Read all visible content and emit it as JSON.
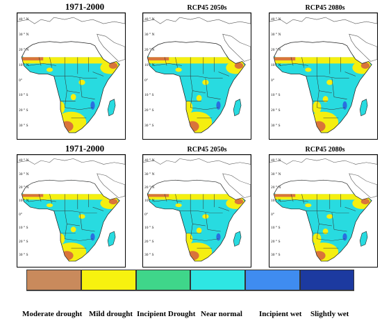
{
  "panels": [
    {
      "title": "1971-2000",
      "size": "big"
    },
    {
      "title": "RCP45 2050s",
      "size": "small"
    },
    {
      "title": "RCP45 2080s",
      "size": "small"
    },
    {
      "title": "1971-2000",
      "size": "big"
    },
    {
      "title": "RCP45 2050s",
      "size": "small"
    },
    {
      "title": "RCP45 2080s",
      "size": "small"
    }
  ],
  "lat_ticks": [
    "40 ° N",
    "30 ° N",
    "20 ° N",
    "10 ° N",
    "0°",
    "10 ° S",
    "20 ° S",
    "30 ° S"
  ],
  "legend": [
    {
      "label": "Moderate drought",
      "color": "#c98a5c"
    },
    {
      "label": "Mild drought",
      "color": "#f7f20f"
    },
    {
      "label": "Incipient Drought",
      "color": "#3fd68a"
    },
    {
      "label": "Near normal",
      "color": "#2ee6e3"
    },
    {
      "label": "Incipient wet",
      "color": "#3f8cf0"
    },
    {
      "label": "Slightly wet",
      "color": "#1c3aa0"
    }
  ],
  "colors": {
    "near_normal": "#28dbe0",
    "mild": "#f5ef10",
    "moderate": "#d9743a",
    "wet": "#2a6fe0",
    "land_outline": "#555555"
  }
}
